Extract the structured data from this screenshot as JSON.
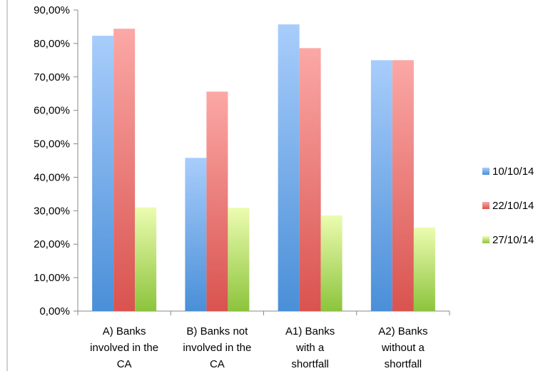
{
  "chart_data": {
    "type": "bar",
    "categories": [
      [
        "A) Banks",
        "involved in the",
        "CA"
      ],
      [
        "B) Banks not",
        "involved in the",
        "CA"
      ],
      [
        "A1) Banks",
        "with a",
        "shortfall"
      ],
      [
        "A2) Banks",
        "without a",
        "shortfall"
      ]
    ],
    "series": [
      {
        "name": "10/10/14",
        "values": [
          82.3,
          45.8,
          85.7,
          75.0
        ],
        "color_top": "#a8cdfb",
        "color_bottom": "#4a8fd8"
      },
      {
        "name": "22/10/14",
        "values": [
          84.4,
          65.6,
          78.6,
          75.0
        ],
        "color_top": "#fba8a6",
        "color_bottom": "#d9534f"
      },
      {
        "name": "27/10/14",
        "values": [
          31.0,
          30.9,
          28.6,
          25.0
        ],
        "color_top": "#ecfcb0",
        "color_bottom": "#8cc43c"
      }
    ],
    "y_ticks": [
      "0,00%",
      "10,00%",
      "20,00%",
      "30,00%",
      "40,00%",
      "50,00%",
      "60,00%",
      "70,00%",
      "80,00%",
      "90,00%"
    ],
    "ylim": [
      0,
      90
    ],
    "grid": false,
    "legend_position": "right",
    "title": "",
    "xlabel": "",
    "ylabel": ""
  }
}
